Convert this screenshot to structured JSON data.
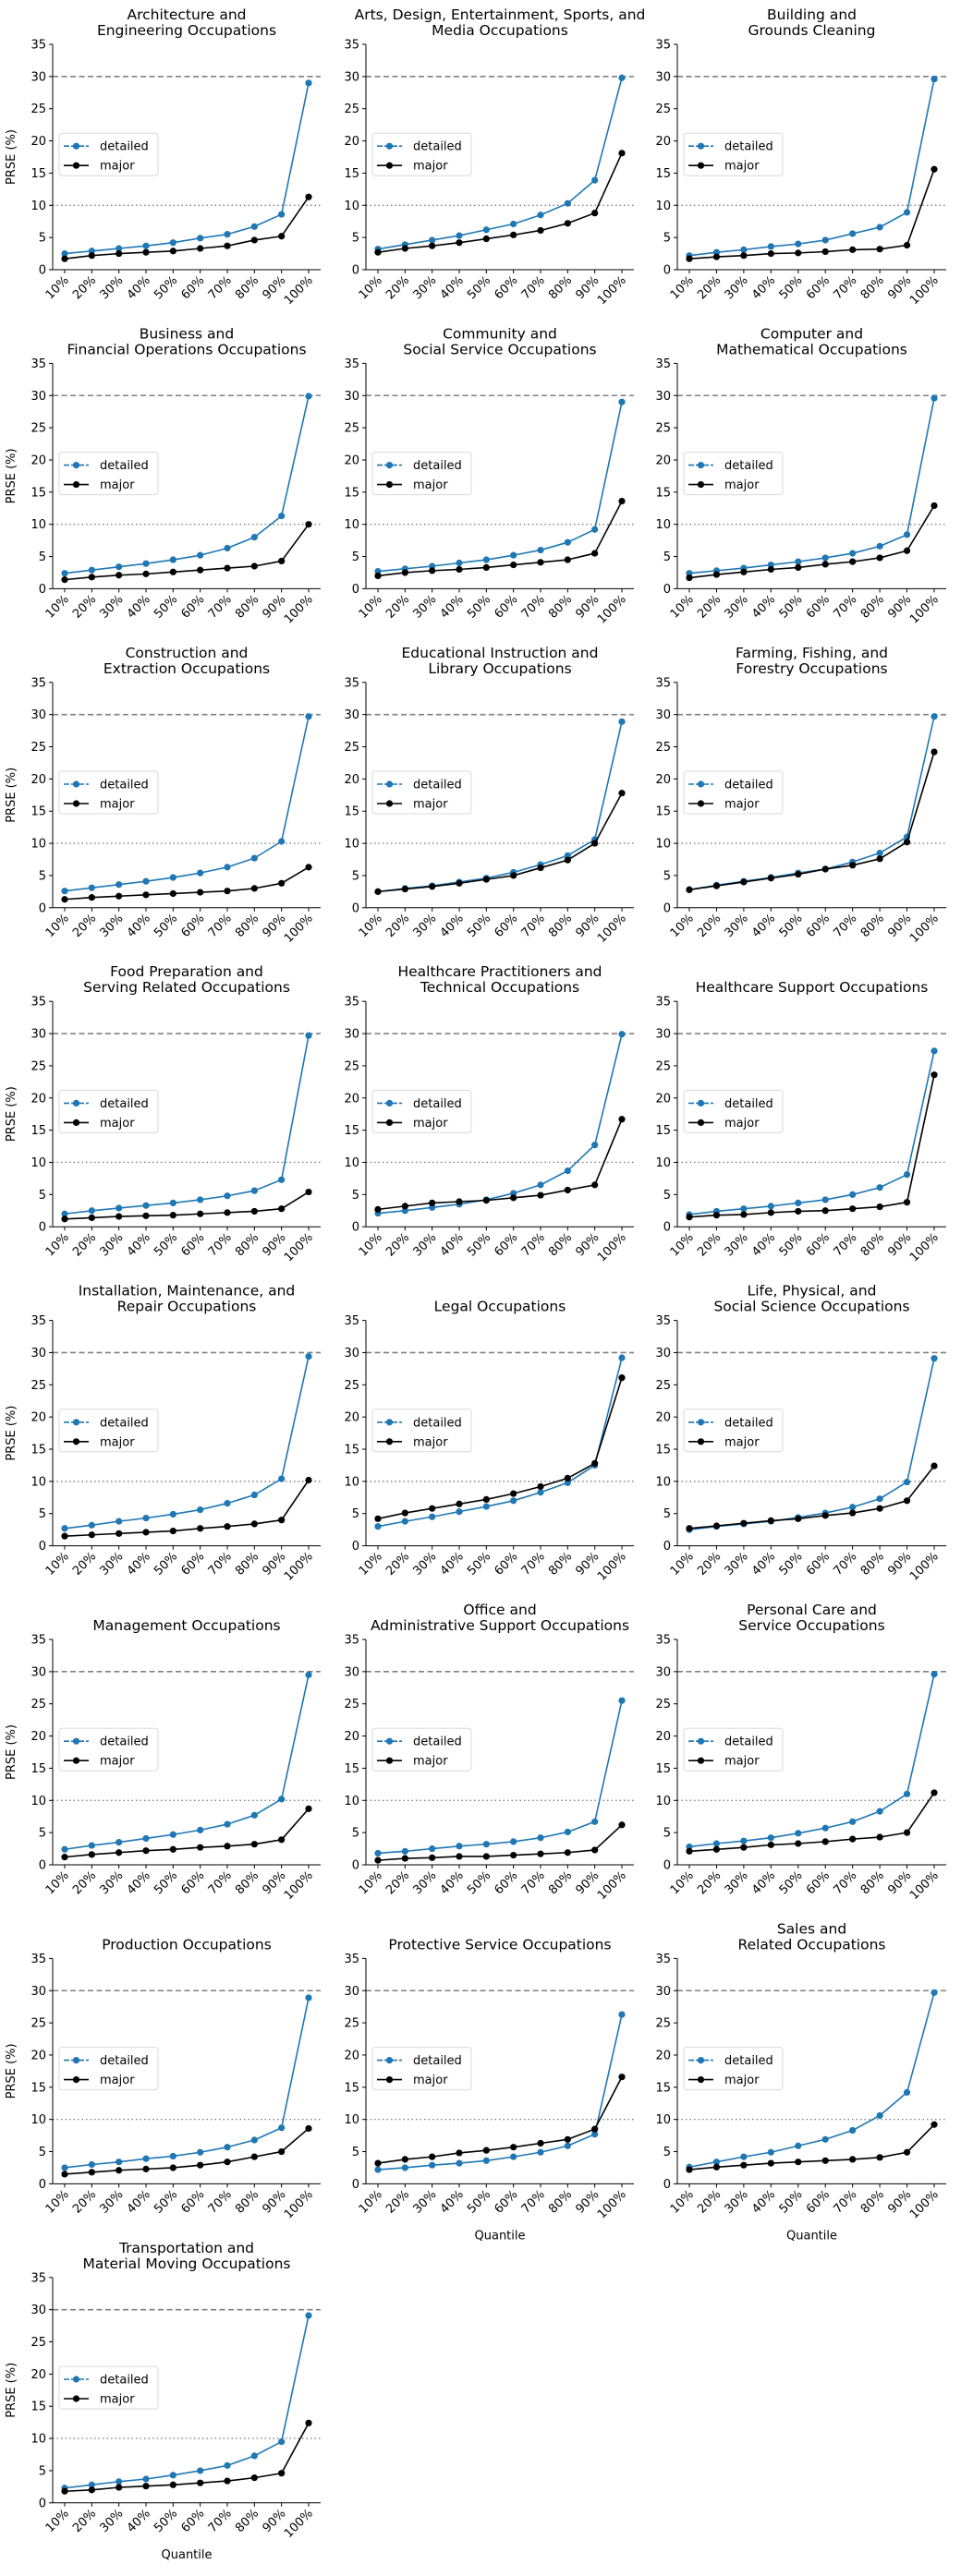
{
  "figure": {
    "ylabel": "PRSE (%)",
    "xlabel": "Quantile",
    "colors": {
      "detailed": "#1f77b4",
      "major": "#000000",
      "reference": "#808080"
    }
  },
  "chart_data": {
    "type": "line",
    "layout": "small-multiples grid, 3 columns",
    "x": [
      "10%",
      "20%",
      "30%",
      "40%",
      "50%",
      "60%",
      "70%",
      "80%",
      "90%",
      "100%"
    ],
    "xlabel": "Quantile",
    "ylabel": "PRSE (%)",
    "ylim": [
      0,
      35
    ],
    "yticks": [
      0,
      5,
      10,
      15,
      20,
      25,
      30,
      35
    ],
    "reference_lines": [
      {
        "y": 30,
        "style": "dashed"
      },
      {
        "y": 10,
        "style": "dotted"
      }
    ],
    "legend": {
      "entries": [
        "detailed",
        "major"
      ],
      "placement": "center-left"
    },
    "grid": false,
    "panels": [
      {
        "title": [
          "Architecture and",
          "Engineering Occupations"
        ],
        "series": [
          {
            "name": "detailed",
            "values": [
              2.5,
              2.9,
              3.3,
              3.7,
              4.2,
              4.9,
              5.5,
              6.7,
              8.6,
              29.0
            ]
          },
          {
            "name": "major",
            "values": [
              1.7,
              2.2,
              2.5,
              2.7,
              2.9,
              3.3,
              3.7,
              4.6,
              5.2,
              11.3
            ]
          }
        ]
      },
      {
        "title": [
          "Arts, Design, Entertainment, Sports, and",
          "Media Occupations"
        ],
        "series": [
          {
            "name": "detailed",
            "values": [
              3.2,
              3.9,
              4.6,
              5.3,
              6.2,
              7.1,
              8.5,
              10.3,
              13.9,
              29.8
            ]
          },
          {
            "name": "major",
            "values": [
              2.7,
              3.3,
              3.7,
              4.2,
              4.8,
              5.4,
              6.1,
              7.2,
              8.8,
              18.1
            ]
          }
        ]
      },
      {
        "title": [
          "Building and",
          "Grounds Cleaning"
        ],
        "series": [
          {
            "name": "detailed",
            "values": [
              2.2,
              2.7,
              3.1,
              3.6,
              4.0,
              4.6,
              5.6,
              6.6,
              8.9,
              29.6
            ]
          },
          {
            "name": "major",
            "values": [
              1.7,
              2.0,
              2.2,
              2.5,
              2.6,
              2.8,
              3.1,
              3.2,
              3.8,
              15.6
            ]
          }
        ]
      },
      {
        "title": [
          "Business and",
          "Financial Operations Occupations"
        ],
        "series": [
          {
            "name": "detailed",
            "values": [
              2.4,
              2.9,
              3.4,
              3.9,
              4.5,
              5.2,
              6.3,
              8.0,
              11.3,
              29.9
            ]
          },
          {
            "name": "major",
            "values": [
              1.4,
              1.8,
              2.1,
              2.3,
              2.6,
              2.9,
              3.2,
              3.5,
              4.3,
              10.0
            ]
          }
        ]
      },
      {
        "title": [
          "Community and",
          "Social Service Occupations"
        ],
        "series": [
          {
            "name": "detailed",
            "values": [
              2.7,
              3.1,
              3.5,
              4.0,
              4.5,
              5.2,
              6.0,
              7.2,
              9.2,
              29.0
            ]
          },
          {
            "name": "major",
            "values": [
              2.0,
              2.5,
              2.8,
              3.0,
              3.3,
              3.7,
              4.1,
              4.5,
              5.5,
              13.6
            ]
          }
        ]
      },
      {
        "title": [
          "Computer and",
          "Mathematical Occupations"
        ],
        "series": [
          {
            "name": "detailed",
            "values": [
              2.4,
              2.8,
              3.2,
              3.7,
              4.2,
              4.8,
              5.5,
              6.6,
              8.4,
              29.6
            ]
          },
          {
            "name": "major",
            "values": [
              1.7,
              2.2,
              2.6,
              3.0,
              3.3,
              3.8,
              4.2,
              4.8,
              5.9,
              12.9
            ]
          }
        ]
      },
      {
        "title": [
          "Construction and",
          "Extraction Occupations"
        ],
        "series": [
          {
            "name": "detailed",
            "values": [
              2.6,
              3.1,
              3.6,
              4.1,
              4.7,
              5.4,
              6.3,
              7.7,
              10.3,
              29.7
            ]
          },
          {
            "name": "major",
            "values": [
              1.3,
              1.6,
              1.8,
              2.0,
              2.2,
              2.4,
              2.6,
              3.0,
              3.8,
              6.3
            ]
          }
        ]
      },
      {
        "title": [
          "Educational Instruction and",
          "Library Occupations"
        ],
        "series": [
          {
            "name": "detailed",
            "values": [
              2.5,
              3.0,
              3.4,
              4.0,
              4.6,
              5.5,
              6.7,
              8.1,
              10.6,
              28.9
            ]
          },
          {
            "name": "major",
            "values": [
              2.5,
              2.9,
              3.3,
              3.8,
              4.4,
              5.0,
              6.2,
              7.4,
              10.0,
              17.8
            ]
          }
        ]
      },
      {
        "title": [
          "Farming, Fishing, and",
          "Forestry Occupations"
        ],
        "series": [
          {
            "name": "detailed",
            "values": [
              2.8,
              3.5,
              4.1,
              4.7,
              5.4,
              6.0,
              7.1,
              8.5,
              11.0,
              29.7
            ]
          },
          {
            "name": "major",
            "values": [
              2.8,
              3.4,
              4.0,
              4.6,
              5.2,
              6.0,
              6.6,
              7.6,
              10.2,
              24.2
            ]
          }
        ]
      },
      {
        "title": [
          "Food Preparation and",
          "Serving Related Occupations"
        ],
        "series": [
          {
            "name": "detailed",
            "values": [
              2.0,
              2.5,
              2.9,
              3.3,
              3.7,
              4.2,
              4.8,
              5.6,
              7.3,
              29.7
            ]
          },
          {
            "name": "major",
            "values": [
              1.2,
              1.4,
              1.6,
              1.7,
              1.8,
              2.0,
              2.2,
              2.4,
              2.8,
              5.4
            ]
          }
        ]
      },
      {
        "title": [
          "Healthcare Practitioners and",
          "Technical Occupations"
        ],
        "series": [
          {
            "name": "detailed",
            "values": [
              2.1,
              2.5,
              3.0,
              3.5,
              4.2,
              5.2,
              6.5,
              8.7,
              12.7,
              29.9
            ]
          },
          {
            "name": "major",
            "values": [
              2.7,
              3.2,
              3.7,
              3.9,
              4.1,
              4.5,
              4.9,
              5.7,
              6.5,
              16.7
            ]
          }
        ]
      },
      {
        "title": [
          "Healthcare Support Occupations"
        ],
        "series": [
          {
            "name": "detailed",
            "values": [
              1.9,
              2.4,
              2.8,
              3.2,
              3.7,
              4.2,
              5.0,
              6.1,
              8.1,
              27.3
            ]
          },
          {
            "name": "major",
            "values": [
              1.5,
              1.8,
              1.9,
              2.2,
              2.4,
              2.5,
              2.8,
              3.1,
              3.8,
              23.6
            ]
          }
        ]
      },
      {
        "title": [
          "Installation, Maintenance, and",
          "Repair Occupations"
        ],
        "series": [
          {
            "name": "detailed",
            "values": [
              2.7,
              3.2,
              3.8,
              4.3,
              4.9,
              5.6,
              6.6,
              7.9,
              10.4,
              29.4
            ]
          },
          {
            "name": "major",
            "values": [
              1.5,
              1.7,
              1.9,
              2.1,
              2.3,
              2.7,
              3.0,
              3.4,
              4.0,
              10.2
            ]
          }
        ]
      },
      {
        "title": [
          "Legal Occupations"
        ],
        "series": [
          {
            "name": "detailed",
            "values": [
              3.0,
              3.8,
              4.5,
              5.3,
              6.1,
              7.0,
              8.3,
              9.8,
              12.5,
              29.2
            ]
          },
          {
            "name": "major",
            "values": [
              4.2,
              5.1,
              5.8,
              6.5,
              7.2,
              8.1,
              9.2,
              10.5,
              12.8,
              26.1
            ]
          }
        ]
      },
      {
        "title": [
          "Life, Physical, and",
          "Social Science Occupations"
        ],
        "series": [
          {
            "name": "detailed",
            "values": [
              2.5,
              3.0,
              3.4,
              3.8,
              4.4,
              5.1,
              6.0,
              7.3,
              9.9,
              29.1
            ]
          },
          {
            "name": "major",
            "values": [
              2.7,
              3.1,
              3.5,
              3.9,
              4.2,
              4.7,
              5.1,
              5.8,
              7.0,
              12.4
            ]
          }
        ]
      },
      {
        "title": [
          "Management Occupations"
        ],
        "series": [
          {
            "name": "detailed",
            "values": [
              2.4,
              3.0,
              3.5,
              4.1,
              4.7,
              5.4,
              6.3,
              7.7,
              10.2,
              29.5
            ]
          },
          {
            "name": "major",
            "values": [
              1.2,
              1.6,
              1.9,
              2.2,
              2.4,
              2.7,
              2.9,
              3.2,
              3.9,
              8.7
            ]
          }
        ]
      },
      {
        "title": [
          "Office and",
          "Administrative Support Occupations"
        ],
        "series": [
          {
            "name": "detailed",
            "values": [
              1.8,
              2.1,
              2.5,
              2.9,
              3.2,
              3.6,
              4.2,
              5.1,
              6.7,
              25.5
            ]
          },
          {
            "name": "major",
            "values": [
              0.7,
              1.0,
              1.1,
              1.3,
              1.3,
              1.5,
              1.7,
              1.9,
              2.3,
              6.2
            ]
          }
        ]
      },
      {
        "title": [
          "Personal Care and",
          "Service Occupations"
        ],
        "series": [
          {
            "name": "detailed",
            "values": [
              2.8,
              3.3,
              3.7,
              4.2,
              4.9,
              5.7,
              6.7,
              8.3,
              11.0,
              29.6
            ]
          },
          {
            "name": "major",
            "values": [
              2.1,
              2.4,
              2.7,
              3.1,
              3.3,
              3.6,
              4.0,
              4.3,
              5.0,
              11.2
            ]
          }
        ]
      },
      {
        "title": [
          "Production Occupations"
        ],
        "series": [
          {
            "name": "detailed",
            "values": [
              2.5,
              3.0,
              3.4,
              3.9,
              4.3,
              4.9,
              5.7,
              6.8,
              8.7,
              28.9
            ]
          },
          {
            "name": "major",
            "values": [
              1.5,
              1.8,
              2.1,
              2.3,
              2.5,
              2.9,
              3.4,
              4.2,
              5.0,
              8.6
            ]
          }
        ]
      },
      {
        "title": [
          "Protective Service Occupations"
        ],
        "series": [
          {
            "name": "detailed",
            "values": [
              2.2,
              2.5,
              2.9,
              3.2,
              3.6,
              4.2,
              4.9,
              5.9,
              7.7,
              26.3
            ]
          },
          {
            "name": "major",
            "values": [
              3.2,
              3.8,
              4.2,
              4.8,
              5.2,
              5.7,
              6.3,
              6.9,
              8.5,
              16.6
            ]
          }
        ]
      },
      {
        "title": [
          "Sales and",
          "Related Occupations"
        ],
        "series": [
          {
            "name": "detailed",
            "values": [
              2.6,
              3.4,
              4.2,
              4.9,
              5.9,
              6.9,
              8.3,
              10.6,
              14.2,
              29.7
            ]
          },
          {
            "name": "major",
            "values": [
              2.2,
              2.6,
              2.9,
              3.2,
              3.4,
              3.6,
              3.8,
              4.1,
              4.9,
              9.2
            ]
          }
        ]
      },
      {
        "title": [
          "Transportation and",
          "Material Moving Occupations"
        ],
        "series": [
          {
            "name": "detailed",
            "values": [
              2.3,
              2.8,
              3.3,
              3.7,
              4.3,
              5.0,
              5.8,
              7.3,
              9.5,
              29.1
            ]
          },
          {
            "name": "major",
            "values": [
              1.8,
              2.0,
              2.4,
              2.6,
              2.8,
              3.1,
              3.4,
              3.9,
              4.6,
              12.4
            ]
          }
        ]
      }
    ]
  }
}
